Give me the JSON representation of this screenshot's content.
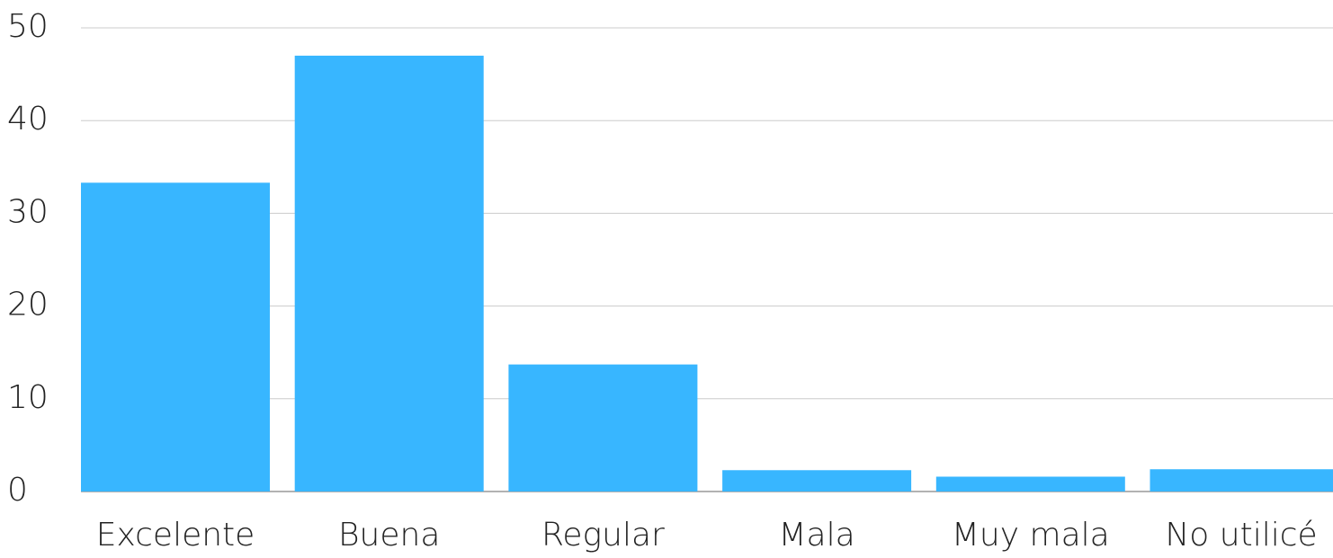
{
  "chart_data": {
    "type": "bar",
    "categories": [
      "Excelente",
      "Buena",
      "Regular",
      "Mala",
      "Muy mala",
      "No utilicé"
    ],
    "values": [
      33.3,
      47,
      13.7,
      2.3,
      1.6,
      2.4
    ],
    "color": "#38b6ff",
    "ylim": [
      0,
      50
    ],
    "yticks": [
      0,
      10,
      20,
      30,
      40,
      50
    ],
    "grid": true
  }
}
